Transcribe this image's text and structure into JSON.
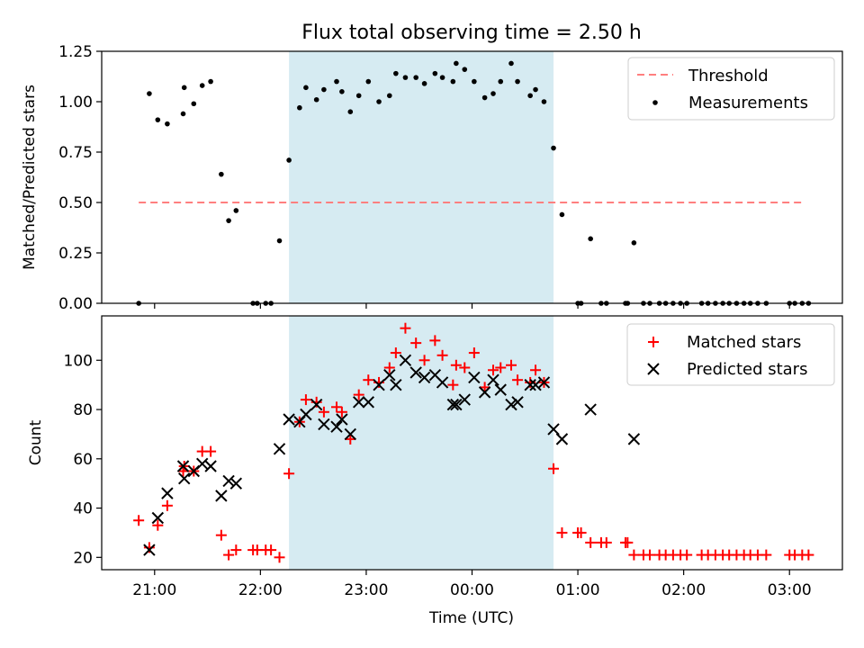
{
  "title": "Flux total observing time = 2.50 h",
  "colors": {
    "threshold": "#ff7f7f",
    "measurement": "#000000",
    "matched": "#ff0000",
    "predicted": "#000000",
    "shade": "#add8e6"
  },
  "chart_data": [
    {
      "type": "scatter",
      "panel": "top",
      "ylabel": "Matched/Predicted stars",
      "xlim": [
        20.5,
        27.5
      ],
      "ylim": [
        0,
        1.25
      ],
      "yticks": [
        "0.00",
        "0.25",
        "0.50",
        "0.75",
        "1.00",
        "1.25"
      ],
      "ytick_values": [
        0,
        0.25,
        0.5,
        0.75,
        1.0,
        1.25
      ],
      "shaded_span": [
        22.27,
        24.77
      ],
      "threshold": 0.5,
      "threshold_range": [
        20.85,
        27.15
      ],
      "legend": [
        "Threshold",
        "Measurements"
      ],
      "legend_position": "top-right",
      "series": [
        {
          "name": "Measurements",
          "marker": "dot",
          "points": [
            [
              20.85,
              0.0
            ],
            [
              20.95,
              1.04
            ],
            [
              21.03,
              0.91
            ],
            [
              21.12,
              0.89
            ],
            [
              21.27,
              0.94
            ],
            [
              21.28,
              1.07
            ],
            [
              21.37,
              0.99
            ],
            [
              21.45,
              1.08
            ],
            [
              21.53,
              1.1
            ],
            [
              21.63,
              0.64
            ],
            [
              21.7,
              0.41
            ],
            [
              21.77,
              0.46
            ],
            [
              21.93,
              0.0
            ],
            [
              21.97,
              0.0
            ],
            [
              22.05,
              0.0
            ],
            [
              22.1,
              0.0
            ],
            [
              22.18,
              0.31
            ],
            [
              22.27,
              0.71
            ],
            [
              22.37,
              0.97
            ],
            [
              22.43,
              1.07
            ],
            [
              22.53,
              1.01
            ],
            [
              22.6,
              1.06
            ],
            [
              22.72,
              1.1
            ],
            [
              22.77,
              1.05
            ],
            [
              22.85,
              0.95
            ],
            [
              22.93,
              1.03
            ],
            [
              23.02,
              1.1
            ],
            [
              23.12,
              1.0
            ],
            [
              23.22,
              1.03
            ],
            [
              23.28,
              1.14
            ],
            [
              23.37,
              1.12
            ],
            [
              23.47,
              1.12
            ],
            [
              23.55,
              1.09
            ],
            [
              23.65,
              1.14
            ],
            [
              23.72,
              1.12
            ],
            [
              23.82,
              1.1
            ],
            [
              23.85,
              1.19
            ],
            [
              23.93,
              1.16
            ],
            [
              24.02,
              1.1
            ],
            [
              24.12,
              1.02
            ],
            [
              24.2,
              1.04
            ],
            [
              24.27,
              1.1
            ],
            [
              24.37,
              1.19
            ],
            [
              24.43,
              1.1
            ],
            [
              24.55,
              1.03
            ],
            [
              24.6,
              1.06
            ],
            [
              24.68,
              1.0
            ],
            [
              24.77,
              0.77
            ],
            [
              24.85,
              0.44
            ],
            [
              25.0,
              0.0
            ],
            [
              25.03,
              0.0
            ],
            [
              25.12,
              0.32
            ],
            [
              25.22,
              0.0
            ],
            [
              25.27,
              0.0
            ],
            [
              25.45,
              0.0
            ],
            [
              25.47,
              0.0
            ],
            [
              25.53,
              0.3
            ],
            [
              25.62,
              0.0
            ],
            [
              25.68,
              0.0
            ],
            [
              25.77,
              0.0
            ],
            [
              25.83,
              0.0
            ],
            [
              25.9,
              0.0
            ],
            [
              25.97,
              0.0
            ],
            [
              26.03,
              0.0
            ],
            [
              26.17,
              0.0
            ],
            [
              26.23,
              0.0
            ],
            [
              26.3,
              0.0
            ],
            [
              26.37,
              0.0
            ],
            [
              26.43,
              0.0
            ],
            [
              26.5,
              0.0
            ],
            [
              26.57,
              0.0
            ],
            [
              26.63,
              0.0
            ],
            [
              26.7,
              0.0
            ],
            [
              26.78,
              0.0
            ],
            [
              27.0,
              0.0
            ],
            [
              27.05,
              0.0
            ],
            [
              27.12,
              0.0
            ],
            [
              27.18,
              0.0
            ]
          ]
        }
      ]
    },
    {
      "type": "scatter",
      "panel": "bottom",
      "xlabel": "Time (UTC)",
      "ylabel": "Count",
      "xlim": [
        20.5,
        27.5
      ],
      "ylim": [
        15,
        118
      ],
      "xticks": [
        "21:00",
        "22:00",
        "23:00",
        "00:00",
        "01:00",
        "02:00",
        "03:00"
      ],
      "xtick_values": [
        21,
        22,
        23,
        24,
        25,
        26,
        27
      ],
      "yticks": [
        "20",
        "40",
        "60",
        "80",
        "100"
      ],
      "ytick_values": [
        20,
        40,
        60,
        80,
        100
      ],
      "shaded_span": [
        22.27,
        24.77
      ],
      "legend": [
        "Matched stars",
        "Predicted stars"
      ],
      "legend_position": "top-right",
      "series": [
        {
          "name": "Matched stars",
          "marker": "plus",
          "points": [
            [
              20.85,
              35
            ],
            [
              20.95,
              24
            ],
            [
              21.03,
              33
            ],
            [
              21.12,
              41
            ],
            [
              21.27,
              55
            ],
            [
              21.28,
              57
            ],
            [
              21.37,
              55
            ],
            [
              21.45,
              63
            ],
            [
              21.53,
              63
            ],
            [
              21.63,
              29
            ],
            [
              21.7,
              21
            ],
            [
              21.77,
              23
            ],
            [
              21.93,
              23
            ],
            [
              21.97,
              23
            ],
            [
              22.05,
              23
            ],
            [
              22.1,
              23
            ],
            [
              22.18,
              20
            ],
            [
              22.27,
              54
            ],
            [
              22.37,
              75
            ],
            [
              22.43,
              84
            ],
            [
              22.53,
              83
            ],
            [
              22.6,
              79
            ],
            [
              22.72,
              81
            ],
            [
              22.77,
              79
            ],
            [
              22.85,
              68
            ],
            [
              22.93,
              86
            ],
            [
              23.02,
              92
            ],
            [
              23.12,
              91
            ],
            [
              23.22,
              97
            ],
            [
              23.28,
              103
            ],
            [
              23.37,
              113
            ],
            [
              23.47,
              107
            ],
            [
              23.55,
              100
            ],
            [
              23.65,
              108
            ],
            [
              23.72,
              102
            ],
            [
              23.82,
              90
            ],
            [
              23.85,
              98
            ],
            [
              23.93,
              97
            ],
            [
              24.02,
              103
            ],
            [
              24.12,
              89
            ],
            [
              24.2,
              96
            ],
            [
              24.27,
              97
            ],
            [
              24.37,
              98
            ],
            [
              24.43,
              92
            ],
            [
              24.55,
              91
            ],
            [
              24.6,
              96
            ],
            [
              24.68,
              91
            ],
            [
              24.77,
              56
            ],
            [
              24.85,
              30
            ],
            [
              25.0,
              30
            ],
            [
              25.03,
              30
            ],
            [
              25.12,
              26
            ],
            [
              25.22,
              26
            ],
            [
              25.27,
              26
            ],
            [
              25.45,
              26
            ],
            [
              25.47,
              26
            ],
            [
              25.53,
              21
            ],
            [
              25.62,
              21
            ],
            [
              25.68,
              21
            ],
            [
              25.77,
              21
            ],
            [
              25.83,
              21
            ],
            [
              25.9,
              21
            ],
            [
              25.97,
              21
            ],
            [
              26.03,
              21
            ],
            [
              26.17,
              21
            ],
            [
              26.23,
              21
            ],
            [
              26.3,
              21
            ],
            [
              26.37,
              21
            ],
            [
              26.43,
              21
            ],
            [
              26.5,
              21
            ],
            [
              26.57,
              21
            ],
            [
              26.63,
              21
            ],
            [
              26.7,
              21
            ],
            [
              26.78,
              21
            ],
            [
              27.0,
              21
            ],
            [
              27.05,
              21
            ],
            [
              27.12,
              21
            ],
            [
              27.18,
              21
            ]
          ]
        },
        {
          "name": "Predicted stars",
          "marker": "x",
          "points": [
            [
              20.95,
              23
            ],
            [
              21.03,
              36
            ],
            [
              21.12,
              46
            ],
            [
              21.27,
              57
            ],
            [
              21.28,
              52
            ],
            [
              21.37,
              55
            ],
            [
              21.45,
              58
            ],
            [
              21.53,
              57
            ],
            [
              21.63,
              45
            ],
            [
              21.7,
              51
            ],
            [
              21.77,
              50
            ],
            [
              22.18,
              64
            ],
            [
              22.27,
              76
            ],
            [
              22.37,
              75
            ],
            [
              22.43,
              78
            ],
            [
              22.53,
              82
            ],
            [
              22.6,
              74
            ],
            [
              22.72,
              73
            ],
            [
              22.77,
              76
            ],
            [
              22.85,
              70
            ],
            [
              22.93,
              83
            ],
            [
              23.02,
              83
            ],
            [
              23.12,
              90
            ],
            [
              23.22,
              94
            ],
            [
              23.28,
              90
            ],
            [
              23.37,
              100
            ],
            [
              23.47,
              95
            ],
            [
              23.55,
              93
            ],
            [
              23.65,
              94
            ],
            [
              23.72,
              91
            ],
            [
              23.82,
              82
            ],
            [
              23.85,
              82
            ],
            [
              23.93,
              84
            ],
            [
              24.02,
              93
            ],
            [
              24.12,
              87
            ],
            [
              24.2,
              92
            ],
            [
              24.27,
              88
            ],
            [
              24.37,
              82
            ],
            [
              24.43,
              83
            ],
            [
              24.55,
              90
            ],
            [
              24.6,
              90
            ],
            [
              24.68,
              91
            ],
            [
              24.77,
              72
            ],
            [
              24.85,
              68
            ],
            [
              25.12,
              80
            ],
            [
              25.53,
              68
            ]
          ]
        }
      ]
    }
  ]
}
